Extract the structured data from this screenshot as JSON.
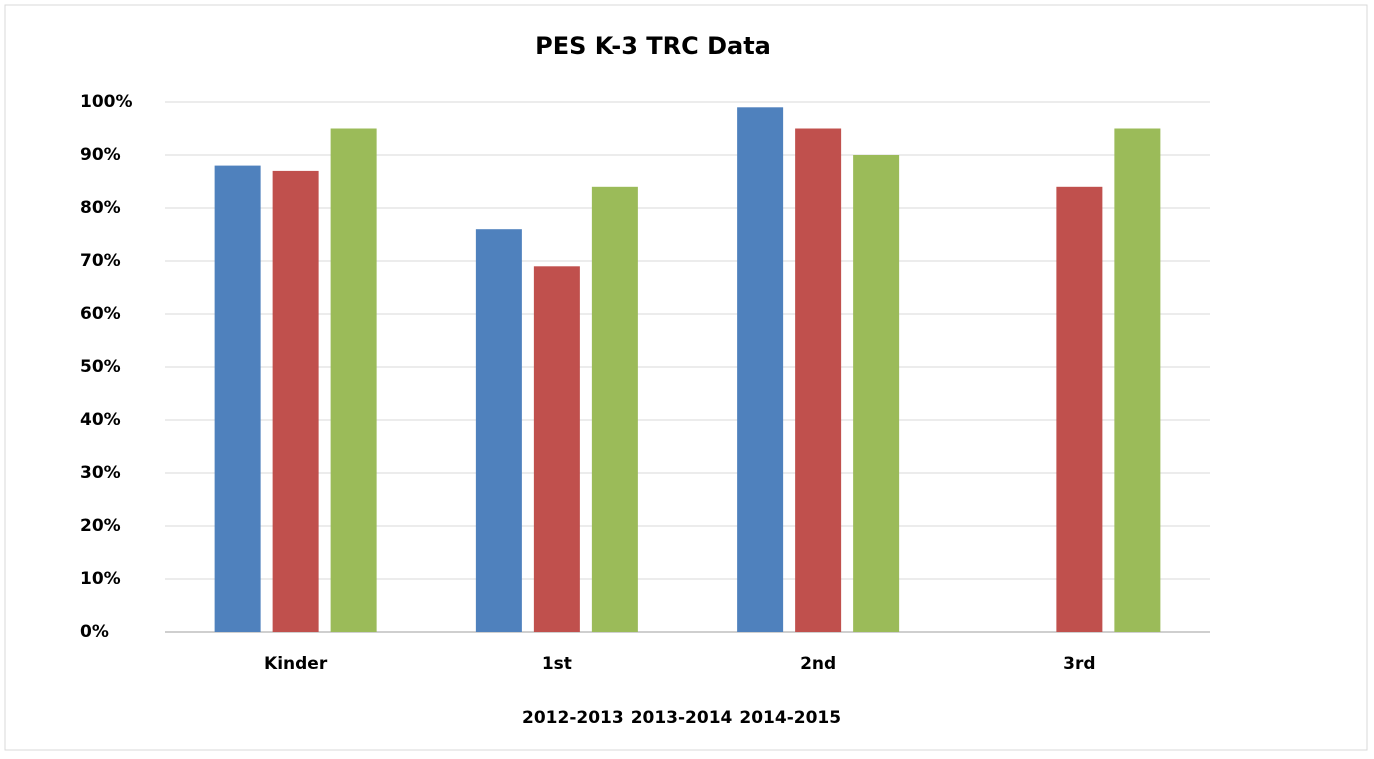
{
  "chart_data": {
    "type": "bar",
    "title": "PES K-3 TRC Data",
    "categories": [
      "Kinder",
      "1st",
      "2nd",
      "3rd"
    ],
    "series": [
      {
        "name": "2012-2013",
        "color": "#4f81bd",
        "values": [
          88,
          76,
          99,
          null
        ]
      },
      {
        "name": "2013-2014",
        "color": "#c0504d",
        "values": [
          87,
          69,
          95,
          84
        ]
      },
      {
        "name": "2014-2015",
        "color": "#9bbb59",
        "values": [
          95,
          84,
          90,
          95
        ]
      }
    ],
    "ylim": [
      0,
      100
    ],
    "yticks": [
      {
        "value": 0,
        "label": "0%"
      },
      {
        "value": 10,
        "label": "10%"
      },
      {
        "value": 20,
        "label": "20%"
      },
      {
        "value": 30,
        "label": "30%"
      },
      {
        "value": 40,
        "label": "40%"
      },
      {
        "value": 50,
        "label": "50%"
      },
      {
        "value": 60,
        "label": "60%"
      },
      {
        "value": 70,
        "label": "70%"
      },
      {
        "value": 80,
        "label": "80%"
      },
      {
        "value": 90,
        "label": "90%"
      },
      {
        "value": 100,
        "label": "100%"
      }
    ],
    "grid": true,
    "legend": "bottom"
  }
}
